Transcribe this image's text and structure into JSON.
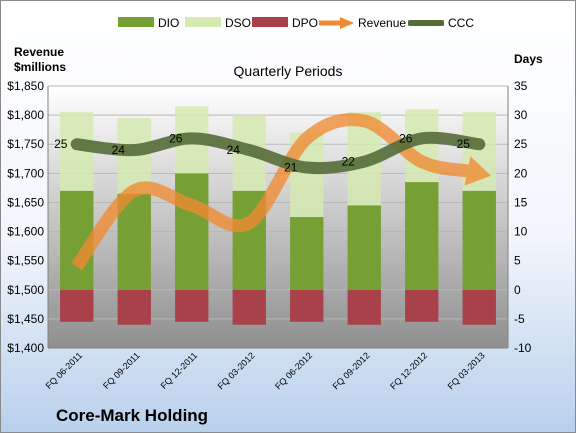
{
  "chart_data": {
    "type": "bar",
    "title": "Quarterly Periods",
    "footer": "Core-Mark Holding",
    "y_left_label": [
      "Revenue",
      "$millions"
    ],
    "y_right_label": "Days",
    "y_left_range": [
      1400,
      1850
    ],
    "y_left_ticks": [
      "$1,400",
      "$1,450",
      "$1,500",
      "$1,550",
      "$1,600",
      "$1,650",
      "$1,700",
      "$1,750",
      "$1,800",
      "$1,850"
    ],
    "y_right_range": [
      -10,
      35
    ],
    "y_right_ticks": [
      "-10",
      "-5",
      "0",
      "5",
      "10",
      "15",
      "20",
      "25",
      "30",
      "35"
    ],
    "categories": [
      "FQ 06-2011",
      "FQ 09-2011",
      "FQ 12-2011",
      "FQ 03-2012",
      "FQ 06-2012",
      "FQ 09-2012",
      "FQ 12-2012",
      "FQ 03-2013"
    ],
    "legend": [
      {
        "name": "DIO",
        "kind": "bar",
        "color": "#77a034"
      },
      {
        "name": "DSO",
        "kind": "bar",
        "color": "#d5e9b1"
      },
      {
        "name": "DPO",
        "kind": "bar",
        "color": "#a9414a"
      },
      {
        "name": "Revenue",
        "kind": "arrow",
        "color": "#f08a32"
      },
      {
        "name": "CCC",
        "kind": "line",
        "color": "#546d38"
      }
    ],
    "series": [
      {
        "name": "DIO",
        "axis": "right",
        "values": [
          17,
          16.5,
          20,
          17,
          12.5,
          14.5,
          18.5,
          17
        ]
      },
      {
        "name": "DSO",
        "axis": "right",
        "values": [
          13.5,
          13,
          11.5,
          13,
          14.5,
          16,
          12.5,
          13.5
        ]
      },
      {
        "name": "DPO",
        "axis": "right",
        "values": [
          -5.5,
          -6,
          -5.5,
          -6,
          -5.5,
          -6,
          -5.5,
          -6
        ]
      },
      {
        "name": "Revenue",
        "axis": "left",
        "values": [
          1540,
          1670,
          1645,
          1615,
          1760,
          1790,
          1720,
          1700
        ]
      },
      {
        "name": "CCC",
        "axis": "right",
        "values": [
          25,
          24,
          26,
          24,
          21,
          22,
          26,
          25
        ]
      }
    ],
    "ccc_labels": [
      "25",
      "24",
      "26",
      "24",
      "21",
      "22",
      "26",
      "25"
    ],
    "grid": true
  }
}
